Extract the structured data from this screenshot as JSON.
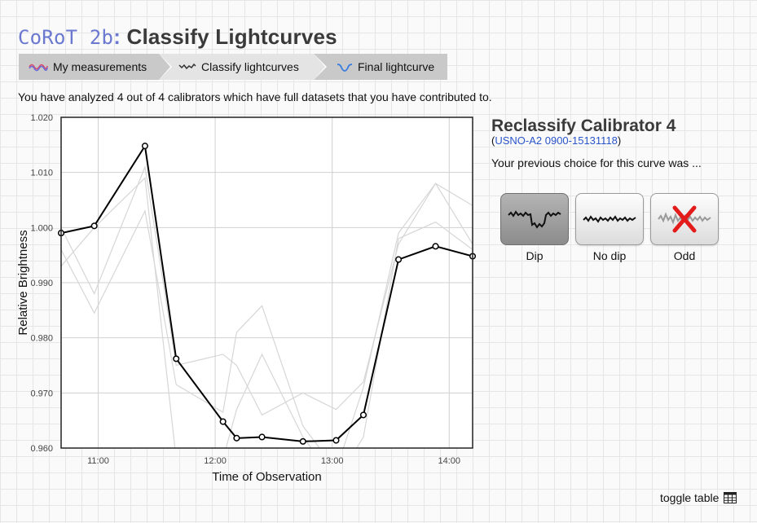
{
  "header": {
    "app_name": "CoRoT 2b",
    "separator": ":",
    "page_title": "Classify Lightcurves"
  },
  "breadcrumbs": [
    {
      "label": "My measurements",
      "icon": "measurements-wave-icon"
    },
    {
      "label": "Classify lightcurves",
      "icon": "classify-curve-icon"
    },
    {
      "label": "Final lightcurve",
      "icon": "final-curve-icon"
    }
  ],
  "info_text": "You have analyzed 4 out of 4 calibrators which have full datasets that you have contributed to.",
  "panel": {
    "title": "Reclassify Calibrator 4",
    "open_paren": "(",
    "link_text": "USNO-A2 0900-15131118",
    "close_paren": ")",
    "prev_choice_text": "Your previous choice for this curve was ...",
    "choices": [
      {
        "label": "Dip",
        "selected": true
      },
      {
        "label": "No dip",
        "selected": false
      },
      {
        "label": "Odd",
        "selected": false
      }
    ]
  },
  "toggle_label": "toggle table",
  "chart_data": {
    "type": "line",
    "xlabel": "Time of Observation",
    "ylabel": "Relative Brightness",
    "xlim": [
      "10:41",
      "14:12"
    ],
    "ylim": [
      0.96,
      1.02
    ],
    "x_ticks": [
      "11:00",
      "12:00",
      "13:00",
      "14:00"
    ],
    "y_ticks": [
      "0.960",
      "0.970",
      "0.980",
      "0.990",
      "1.000",
      "1.010",
      "1.020"
    ],
    "grid": true,
    "series": [
      {
        "highlight": true,
        "x": [
          "10:41",
          "10:58",
          "11:24",
          "11:40",
          "12:04",
          "12:11",
          "12:24",
          "12:45",
          "13:02",
          "13:16",
          "13:34",
          "13:53",
          "14:12"
        ],
        "y": [
          0.999,
          1.0003,
          1.0148,
          0.9762,
          0.9648,
          0.9618,
          0.962,
          0.9612,
          0.9614,
          0.966,
          0.9942,
          0.9966,
          0.9948
        ]
      },
      {
        "highlight": false,
        "x": [
          "10:41",
          "10:58",
          "11:24",
          "11:40",
          "12:04",
          "12:11",
          "12:24",
          "12:45",
          "13:02",
          "13:16",
          "13:34",
          "13:53",
          "14:12"
        ],
        "y": [
          1.0,
          0.988,
          1.011,
          0.975,
          0.977,
          0.975,
          0.966,
          0.97,
          0.967,
          0.972,
          0.997,
          1.008,
          1.004
        ]
      },
      {
        "highlight": false,
        "x": [
          "10:41",
          "10:58",
          "11:24",
          "11:40",
          "12:04",
          "12:11",
          "12:24",
          "12:45",
          "13:02",
          "13:16",
          "13:34",
          "13:53",
          "14:12"
        ],
        "y": [
          0.996,
          0.9845,
          1.003,
          0.9715,
          0.9665,
          0.981,
          0.9858,
          0.964,
          0.956,
          0.971,
          0.999,
          1.008,
          0.997
        ]
      },
      {
        "highlight": false,
        "x": [
          "10:41",
          "10:58",
          "11:24",
          "11:40",
          "12:04",
          "12:11",
          "12:24",
          "12:45",
          "13:02",
          "13:16",
          "13:34",
          "13:53",
          "14:12"
        ],
        "y": [
          0.993,
          1.0,
          1.009,
          0.958,
          0.958,
          0.967,
          0.977,
          0.962,
          0.954,
          0.962,
          0.998,
          1.001,
          0.996
        ]
      }
    ]
  }
}
